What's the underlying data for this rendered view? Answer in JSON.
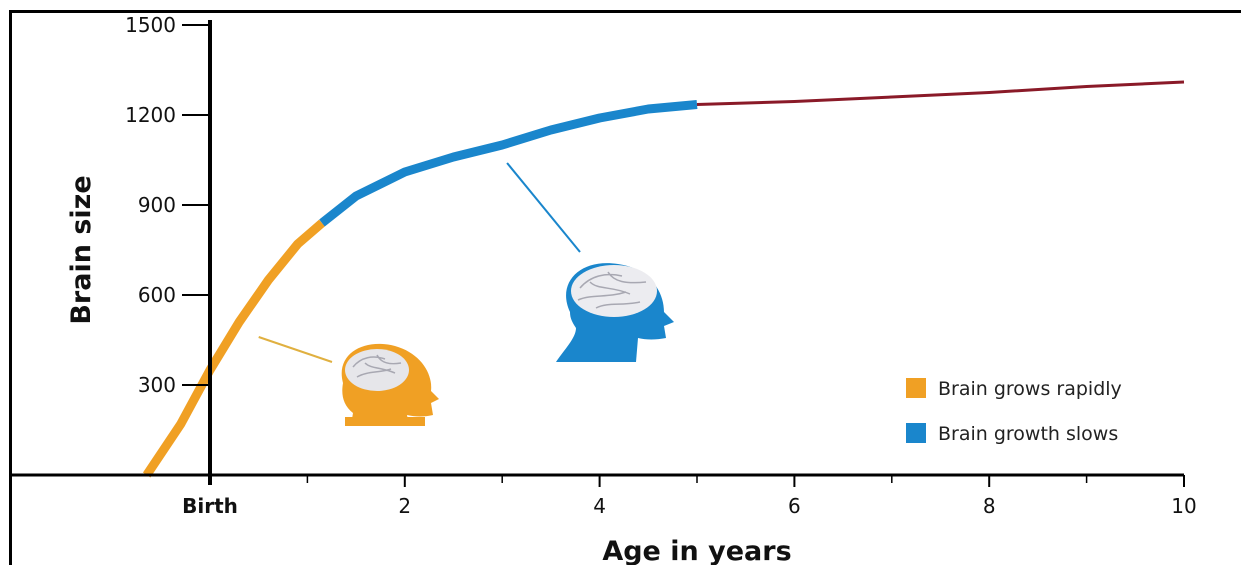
{
  "chart_data": {
    "type": "line",
    "xlabel": "Age in years",
    "ylabel": "Brain size",
    "xlim": [
      -0.65,
      10
    ],
    "ylim": [
      0,
      1500
    ],
    "x_ticks": [
      {
        "value": 0,
        "label": "Birth"
      },
      {
        "value": 2,
        "label": "2"
      },
      {
        "value": 4,
        "label": "4"
      },
      {
        "value": 6,
        "label": "6"
      },
      {
        "value": 8,
        "label": "8"
      },
      {
        "value": 10,
        "label": "10"
      }
    ],
    "y_ticks": [
      {
        "value": 300,
        "label": "300"
      },
      {
        "value": 600,
        "label": "600"
      },
      {
        "value": 900,
        "label": "900"
      },
      {
        "value": 1200,
        "label": "1200"
      },
      {
        "value": 1500,
        "label": "1500"
      }
    ],
    "series": [
      {
        "name": "Brain grows rapidly",
        "color": "#f0a024",
        "points": [
          [
            -0.65,
            0
          ],
          [
            -0.3,
            170
          ],
          [
            0,
            350
          ],
          [
            0.3,
            510
          ],
          [
            0.6,
            650
          ],
          [
            0.9,
            770
          ],
          [
            1.15,
            840
          ]
        ]
      },
      {
        "name": "Brain growth slows",
        "color": "#1a86cc",
        "points": [
          [
            1.15,
            840
          ],
          [
            1.5,
            930
          ],
          [
            2,
            1010
          ],
          [
            2.5,
            1060
          ],
          [
            3,
            1100
          ],
          [
            3.5,
            1150
          ],
          [
            4,
            1190
          ],
          [
            4.5,
            1220
          ],
          [
            5,
            1235
          ]
        ]
      },
      {
        "name": "",
        "color": "#8a1a28",
        "points": [
          [
            5,
            1235
          ],
          [
            6,
            1245
          ],
          [
            7,
            1260
          ],
          [
            8,
            1275
          ],
          [
            9,
            1295
          ],
          [
            10,
            1310
          ]
        ]
      }
    ],
    "legend": {
      "placement": "bottom-right",
      "items": [
        {
          "label": "Brain grows rapidly",
          "color": "#f0a024"
        },
        {
          "label": "Brain growth slows",
          "color": "#1a86cc"
        }
      ]
    },
    "annotations": [
      {
        "icon": "infant-head-icon",
        "color": "#f0a024",
        "points_to_x": 0.5,
        "points_to_y": 460
      },
      {
        "icon": "child-head-icon",
        "color": "#1a86cc",
        "points_to_x": 3.05,
        "points_to_y": 1040
      }
    ],
    "grid": false
  }
}
